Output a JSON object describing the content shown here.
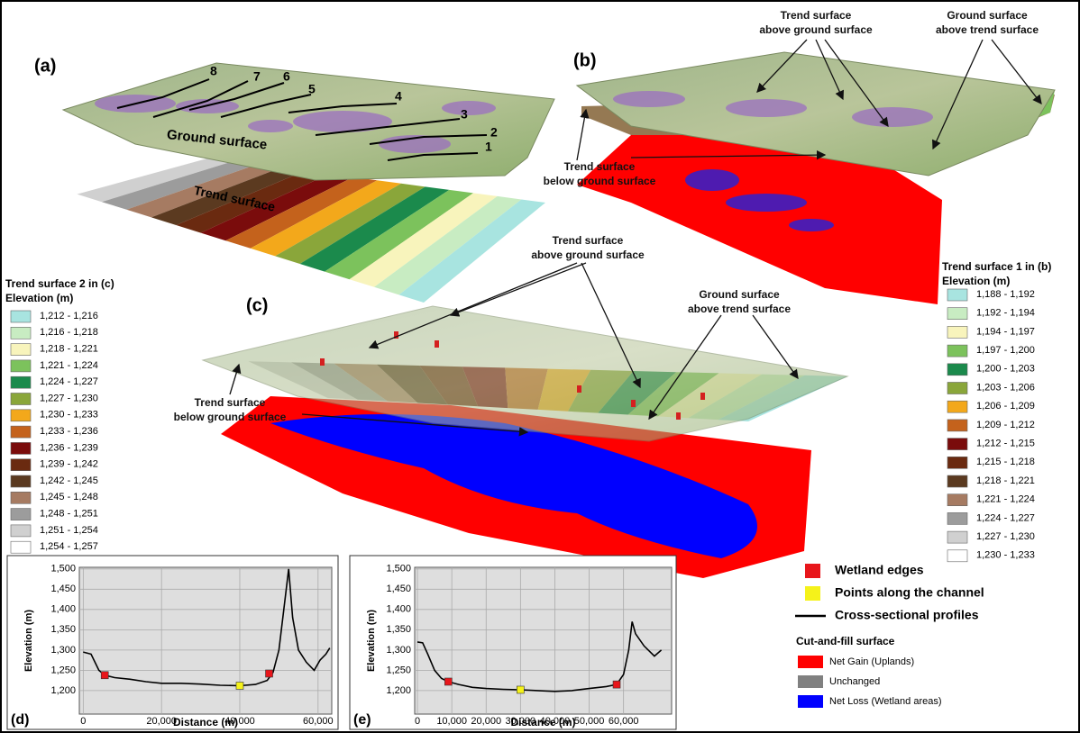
{
  "panels": {
    "a": "(a)",
    "b": "(b)",
    "c": "(c)"
  },
  "panel_a": {
    "profile_numbers": [
      "1",
      "2",
      "3",
      "4",
      "5",
      "6",
      "7",
      "8"
    ],
    "ground_label": "Ground surface",
    "trend_label": "Trend surface"
  },
  "annotations": {
    "b_trend_above": [
      "Trend surface",
      "above ground surface"
    ],
    "b_ground_above": [
      "Ground surface",
      "above trend surface"
    ],
    "b_trend_below": [
      "Trend surface",
      "below ground surface"
    ],
    "c_trend_above": [
      "Trend surface",
      "above ground surface"
    ],
    "c_ground_above": [
      "Ground surface",
      "above trend surface"
    ],
    "c_trend_below": [
      "Trend surface",
      "below ground surface"
    ]
  },
  "legend_c": {
    "title": [
      "Trend surface 2 in (c)",
      "Elevation (m)"
    ],
    "items": [
      {
        "label": "1,212 - 1,216",
        "color": "#a8e4e0"
      },
      {
        "label": "1,216 - 1,218",
        "color": "#c8ecc2"
      },
      {
        "label": "1,218 - 1,221",
        "color": "#f8f4bc"
      },
      {
        "label": "1,221 - 1,224",
        "color": "#7cc25c"
      },
      {
        "label": "1,224 - 1,227",
        "color": "#1b8a4c"
      },
      {
        "label": "1,227 - 1,230",
        "color": "#8aa63a"
      },
      {
        "label": "1,230 - 1,233",
        "color": "#f3a81b"
      },
      {
        "label": "1,233 - 1,236",
        "color": "#c4621c"
      },
      {
        "label": "1,236 - 1,239",
        "color": "#7a0c0c"
      },
      {
        "label": "1,239 - 1,242",
        "color": "#6a2a10"
      },
      {
        "label": "1,242 - 1,245",
        "color": "#5b3a20"
      },
      {
        "label": "1,245 - 1,248",
        "color": "#a67b62"
      },
      {
        "label": "1,248 - 1,251",
        "color": "#9c9c9c"
      },
      {
        "label": "1,251 - 1,254",
        "color": "#d0d0d0"
      },
      {
        "label": "1,254 - 1,257",
        "color": "#ffffff"
      }
    ]
  },
  "legend_b": {
    "title": [
      "Trend surface 1 in (b)",
      "Elevation (m)"
    ],
    "items": [
      {
        "label": "1,188 - 1,192",
        "color": "#a8e4e0"
      },
      {
        "label": "1,192 - 1,194",
        "color": "#c8ecc2"
      },
      {
        "label": "1,194 - 1,197",
        "color": "#f8f4bc"
      },
      {
        "label": "1,197 - 1,200",
        "color": "#7cc25c"
      },
      {
        "label": "1,200 - 1,203",
        "color": "#1b8a4c"
      },
      {
        "label": "1,203 - 1,206",
        "color": "#8aa63a"
      },
      {
        "label": "1,206 - 1,209",
        "color": "#f3a81b"
      },
      {
        "label": "1,209 - 1,212",
        "color": "#c4621c"
      },
      {
        "label": "1,212 - 1,215",
        "color": "#7a0c0c"
      },
      {
        "label": "1,215 - 1,218",
        "color": "#6a2a10"
      },
      {
        "label": "1,218 - 1,221",
        "color": "#5b3a20"
      },
      {
        "label": "1,221 - 1,224",
        "color": "#a67b62"
      },
      {
        "label": "1,224 - 1,227",
        "color": "#9c9c9c"
      },
      {
        "label": "1,227 - 1,230",
        "color": "#d0d0d0"
      },
      {
        "label": "1,230 - 1,233",
        "color": "#ffffff"
      }
    ]
  },
  "legend_markers": {
    "items": [
      {
        "label": "Wetland edges",
        "color": "#e8161b"
      },
      {
        "label": "Points along the channel",
        "color": "#f5f21a"
      },
      {
        "label": "Cross-sectional profiles",
        "color": "#000000"
      }
    ],
    "cutfill_title": "Cut-and-fill surface",
    "cutfill": [
      {
        "label": "Net Gain (Uplands)",
        "color": "#ff0000"
      },
      {
        "label": "Unchanged",
        "color": "#808080"
      },
      {
        "label": "Net Loss (Wetland areas)",
        "color": "#0000ff"
      }
    ]
  },
  "chart_data": [
    {
      "type": "line",
      "panel_label": "(d)",
      "x_label": "Distance (m)",
      "y_label": "Elevation (m)",
      "grid": true,
      "x": [
        0,
        2000,
        4000,
        5500,
        8000,
        12000,
        16000,
        20000,
        25000,
        30000,
        35000,
        40000,
        44000,
        47000,
        48500,
        50000,
        51500,
        52500,
        53500,
        55000,
        57000,
        59000,
        60500,
        62000,
        63000
      ],
      "series": [
        {
          "color": "#000000",
          "values": [
            1295,
            1290,
            1250,
            1238,
            1232,
            1228,
            1222,
            1218,
            1218,
            1216,
            1213,
            1212,
            1215,
            1225,
            1245,
            1300,
            1420,
            1500,
            1380,
            1300,
            1270,
            1250,
            1275,
            1290,
            1305
          ]
        }
      ],
      "markers": [
        {
          "color": "#e8161b",
          "x": [
            5500,
            47500
          ],
          "values": [
            1238,
            1242
          ]
        },
        {
          "color": "#f5f21a",
          "x": [
            40000
          ],
          "values": [
            1212
          ]
        }
      ],
      "xlim": [
        -1000,
        63500
      ],
      "ylim": [
        1142,
        1504
      ],
      "xticks": [
        0,
        {
          "value": 20000,
          "label": "20,000"
        },
        {
          "value": 40000,
          "label": "40,000"
        },
        {
          "value": 60000,
          "label": "60,000"
        }
      ],
      "yticks": [
        {
          "value": 1200,
          "label": "1,200"
        },
        {
          "value": 1250,
          "label": "1,250"
        },
        {
          "value": 1300,
          "label": "1,300"
        },
        {
          "value": 1350,
          "label": "1,350"
        },
        {
          "value": 1400,
          "label": "1,400"
        },
        {
          "value": 1450,
          "label": "1,450"
        },
        {
          "value": 1500,
          "label": "1,500"
        }
      ]
    },
    {
      "type": "line",
      "panel_label": "(e)",
      "x_label": "Distance (m)",
      "y_label": "Elevation (m)",
      "grid": true,
      "x": [
        0,
        1500,
        3000,
        5000,
        7000,
        9000,
        12000,
        16000,
        20000,
        25000,
        30000,
        35000,
        40000,
        45000,
        50000,
        55000,
        58000,
        60000,
        61500,
        62500,
        63500,
        66000,
        69000,
        71000
      ],
      "series": [
        {
          "color": "#000000",
          "values": [
            1320,
            1318,
            1290,
            1250,
            1230,
            1222,
            1215,
            1208,
            1205,
            1203,
            1202,
            1200,
            1198,
            1200,
            1205,
            1210,
            1215,
            1240,
            1300,
            1370,
            1340,
            1310,
            1285,
            1300
          ]
        }
      ],
      "markers": [
        {
          "color": "#e8161b",
          "x": [
            9000,
            58000
          ],
          "values": [
            1222,
            1215
          ]
        },
        {
          "color": "#f5f21a",
          "x": [
            30000
          ],
          "values": [
            1202
          ]
        }
      ],
      "xlim": [
        -800,
        74000
      ],
      "ylim": [
        1142,
        1504
      ],
      "xticks": [
        0,
        {
          "value": 10000,
          "label": "10,000"
        },
        {
          "value": 20000,
          "label": "20,000"
        },
        {
          "value": 30000,
          "label": "30,000"
        },
        {
          "value": 40000,
          "label": "40,000"
        },
        {
          "value": 50000,
          "label": "50,000"
        },
        {
          "value": 60000,
          "label": "60,000"
        }
      ],
      "yticks": [
        {
          "value": 1200,
          "label": "1,200"
        },
        {
          "value": 1250,
          "label": "1,250"
        },
        {
          "value": 1300,
          "label": "1,300"
        },
        {
          "value": 1350,
          "label": "1,350"
        },
        {
          "value": 1400,
          "label": "1,400"
        },
        {
          "value": 1450,
          "label": "1,450"
        },
        {
          "value": 1500,
          "label": "1,500"
        }
      ]
    }
  ]
}
